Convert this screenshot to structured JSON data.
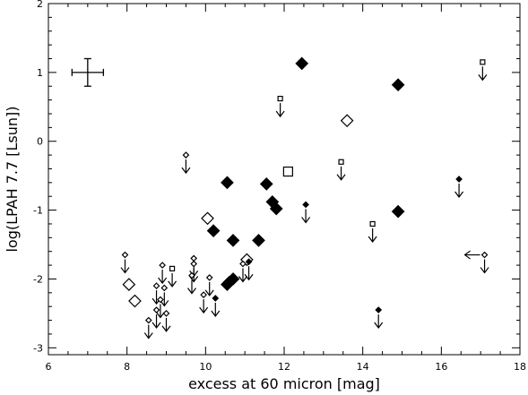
{
  "chart_data": {
    "type": "scatter",
    "xlabel": "excess at 60 micron [mag]",
    "ylabel": "log(LPAH 7.7 [Lsun])",
    "xlim": [
      6,
      18
    ],
    "ylim": [
      -3.1,
      2
    ],
    "xticks": [
      "6",
      "8",
      "10",
      "12",
      "14",
      "16",
      "18"
    ],
    "yticks": [
      "-3",
      "-2",
      "-1",
      "0",
      "1",
      "2"
    ],
    "grid": false,
    "error_bar": {
      "x": 7.0,
      "y": 1.0,
      "xerr": 0.4,
      "yerr": 0.2
    },
    "series": [
      {
        "marker": "filled-diamond",
        "points": [
          [
            12.45,
            1.13
          ],
          [
            14.9,
            0.82
          ],
          [
            10.55,
            -0.6
          ],
          [
            11.55,
            -0.62
          ],
          [
            11.7,
            -0.88
          ],
          [
            11.8,
            -0.98
          ],
          [
            14.9,
            -1.02
          ],
          [
            10.2,
            -1.3
          ],
          [
            10.7,
            -1.44
          ],
          [
            11.35,
            -1.44
          ],
          [
            10.6,
            -2.05
          ],
          [
            10.55,
            -2.08
          ],
          [
            10.7,
            -2.0
          ]
        ]
      },
      {
        "marker": "open-diamond",
        "points": [
          [
            13.6,
            0.3
          ],
          [
            10.05,
            -1.12
          ],
          [
            11.05,
            -1.72
          ],
          [
            8.05,
            -2.08
          ],
          [
            8.2,
            -2.32
          ]
        ]
      },
      {
        "marker": "open-square",
        "points": [
          [
            12.1,
            -0.44
          ]
        ]
      },
      {
        "marker": "open-square-upper-limit",
        "points": [
          [
            11.9,
            0.62
          ],
          [
            17.05,
            1.15
          ],
          [
            13.45,
            -0.3
          ],
          [
            14.25,
            -1.2
          ],
          [
            9.15,
            -1.85
          ]
        ]
      },
      {
        "marker": "open-diamond-upper-limit",
        "points": [
          [
            9.5,
            -0.2
          ],
          [
            7.95,
            -1.65
          ],
          [
            8.9,
            -1.8
          ],
          [
            9.7,
            -1.7
          ],
          [
            9.7,
            -1.78
          ],
          [
            9.65,
            -1.95
          ],
          [
            10.1,
            -1.98
          ],
          [
            10.95,
            -1.78
          ],
          [
            8.75,
            -2.1
          ],
          [
            8.95,
            -2.13
          ],
          [
            8.85,
            -2.3
          ],
          [
            9.95,
            -2.23
          ],
          [
            8.75,
            -2.45
          ],
          [
            8.55,
            -2.6
          ],
          [
            9.0,
            -2.5
          ],
          [
            17.1,
            -1.65
          ]
        ]
      },
      {
        "marker": "filled-diamond-upper-limit",
        "points": [
          [
            12.55,
            -0.92
          ],
          [
            16.45,
            -0.55
          ],
          [
            11.1,
            -1.75
          ],
          [
            10.25,
            -2.28
          ],
          [
            14.4,
            -2.45
          ]
        ]
      }
    ],
    "upper_left_limit": [
      [
        17.1,
        -1.65
      ]
    ]
  }
}
